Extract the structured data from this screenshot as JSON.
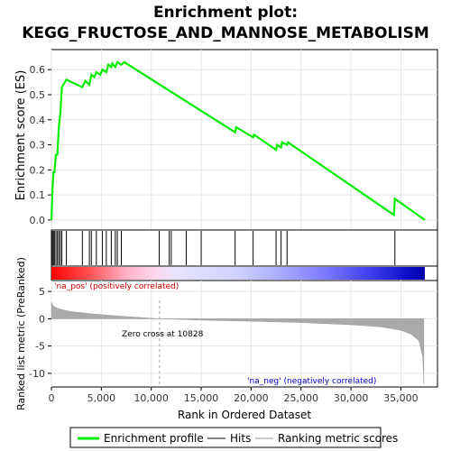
{
  "chart_data": {
    "type": "line",
    "title_line1": "Enrichment plot:",
    "title_line2": "KEGG_FRUCTOSE_AND_MANNOSE_METABOLISM",
    "es_panel": {
      "ylabel": "Enrichment score (ES)",
      "ylim": [
        -0.04,
        0.68
      ],
      "yticks": [
        0.0,
        0.1,
        0.2,
        0.3,
        0.4,
        0.5,
        0.6
      ],
      "ytick_labels": [
        "0.0",
        "0.1",
        "0.2",
        "0.3",
        "0.4",
        "0.5",
        "0.6"
      ],
      "series": [
        {
          "name": "Enrichment profile",
          "color": "#00ee00",
          "x": [
            0,
            100,
            200,
            300,
            450,
            600,
            750,
            900,
            1050,
            1500,
            3100,
            3400,
            3800,
            4000,
            4300,
            4500,
            4900,
            5100,
            5500,
            5700,
            6000,
            6100,
            6400,
            6600,
            7000,
            7300,
            18400,
            18500,
            20200,
            20300,
            22500,
            22600,
            23000,
            23100,
            23600,
            23700,
            34300,
            34400,
            37400
          ],
          "y": [
            0.0,
            0.11,
            0.19,
            0.19,
            0.26,
            0.26,
            0.375,
            0.43,
            0.53,
            0.56,
            0.53,
            0.555,
            0.54,
            0.58,
            0.57,
            0.59,
            0.58,
            0.6,
            0.59,
            0.62,
            0.61,
            0.625,
            0.61,
            0.63,
            0.62,
            0.63,
            0.35,
            0.37,
            0.33,
            0.34,
            0.28,
            0.3,
            0.29,
            0.31,
            0.3,
            0.31,
            0.02,
            0.085,
            0.0
          ]
        }
      ]
    },
    "hits": [
      100,
      200,
      300,
      450,
      600,
      750,
      900,
      1050,
      1500,
      3100,
      3800,
      4000,
      4500,
      5100,
      5500,
      6000,
      6400,
      6600,
      7000,
      10800,
      11800,
      12000,
      13500,
      15000,
      18400,
      20200,
      22500,
      23000,
      23600,
      34400
    ],
    "rank_panel": {
      "ylabel": "Ranked list metric (PreRanked)",
      "xlabel": "Rank in Ordered Dataset",
      "ylim": [
        -12.5,
        7
      ],
      "yticks": [
        5,
        0,
        -5,
        -10
      ],
      "ytick_labels": [
        "5",
        "0",
        "-5",
        "-10"
      ],
      "zero_cross_label": "Zero cross at 10828",
      "zero_cross": 10828,
      "pos_label": "'na_pos' (positively correlated)",
      "neg_label": "'na_neg' (negatively correlated)",
      "metric_curve": {
        "x": [
          0,
          200,
          500,
          1000,
          2000,
          4000,
          7000,
          10828,
          15000,
          20000,
          25000,
          30000,
          33000,
          35000,
          36000,
          36800,
          37200,
          37300
        ],
        "y": [
          3.0,
          2.3,
          2.0,
          1.7,
          1.3,
          0.9,
          0.45,
          0.0,
          -0.25,
          -0.45,
          -0.7,
          -1.1,
          -1.5,
          -2.1,
          -2.8,
          -4.0,
          -7.0,
          -12.0
        ]
      }
    },
    "xlim": [
      0,
      38000
    ],
    "xticks": [
      0,
      5000,
      10000,
      15000,
      20000,
      25000,
      30000,
      35000
    ],
    "xtick_labels": [
      "0",
      "5,000",
      "10,000",
      "15,000",
      "20,000",
      "25,000",
      "30,000",
      "35,000"
    ],
    "colors": {
      "profile": "#00ee00",
      "hits": "#000000",
      "metric_fill": "#aaaaaa",
      "pos_text": "#cc0000",
      "neg_text": "#0000cc",
      "zero_line": "#aaaaaa"
    },
    "legend": {
      "placement": "bottom",
      "items": [
        "Enrichment profile",
        "Hits",
        "Ranking metric scores"
      ]
    }
  }
}
